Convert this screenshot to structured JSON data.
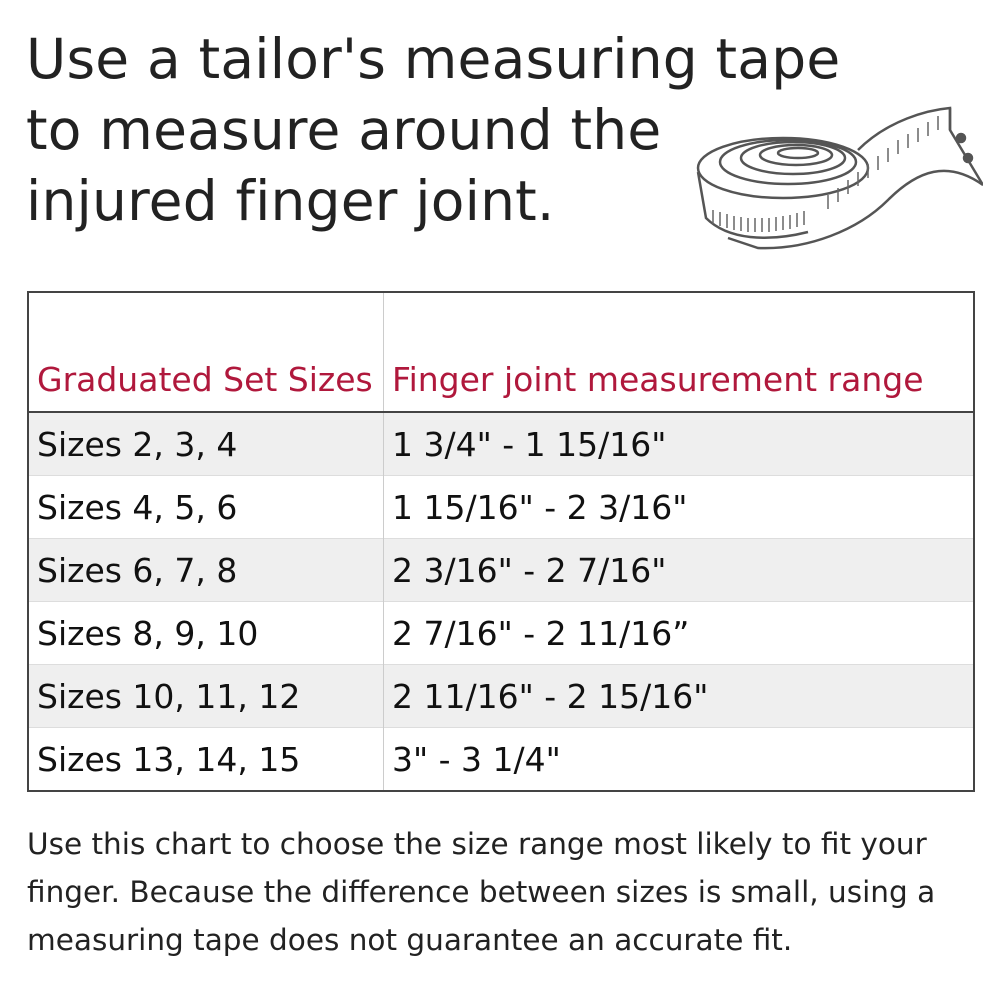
{
  "title_lines": [
    "Use a tailor's measuring tape",
    "to measure around the",
    "injured finger joint."
  ],
  "illustration": "measuring-tape-icon",
  "table": {
    "headers": [
      "Graduated Set Sizes",
      "Finger joint measurement range"
    ],
    "header_color": "#b0183c",
    "rows": [
      {
        "sizes": "Sizes 2, 3, 4",
        "range": "1 3/4\" - 1 15/16\""
      },
      {
        "sizes": "Sizes 4, 5, 6",
        "range": "1 15/16\" - 2 3/16\""
      },
      {
        "sizes": "Sizes 6, 7, 8",
        "range": "2 3/16\" - 2 7/16\""
      },
      {
        "sizes": "Sizes 8, 9, 10",
        "range": "2 7/16\" - 2 11/16”"
      },
      {
        "sizes": "Sizes 10, 11, 12",
        "range": "2 11/16\" - 2 15/16\""
      },
      {
        "sizes": "Sizes 13, 14, 15",
        "range": "3\" - 3 1/4\""
      }
    ]
  },
  "footer": "Use this chart to choose the size range most likely to fit your finger. Because the difference between sizes is small, using a measuring tape does not guarantee an accurate fit."
}
